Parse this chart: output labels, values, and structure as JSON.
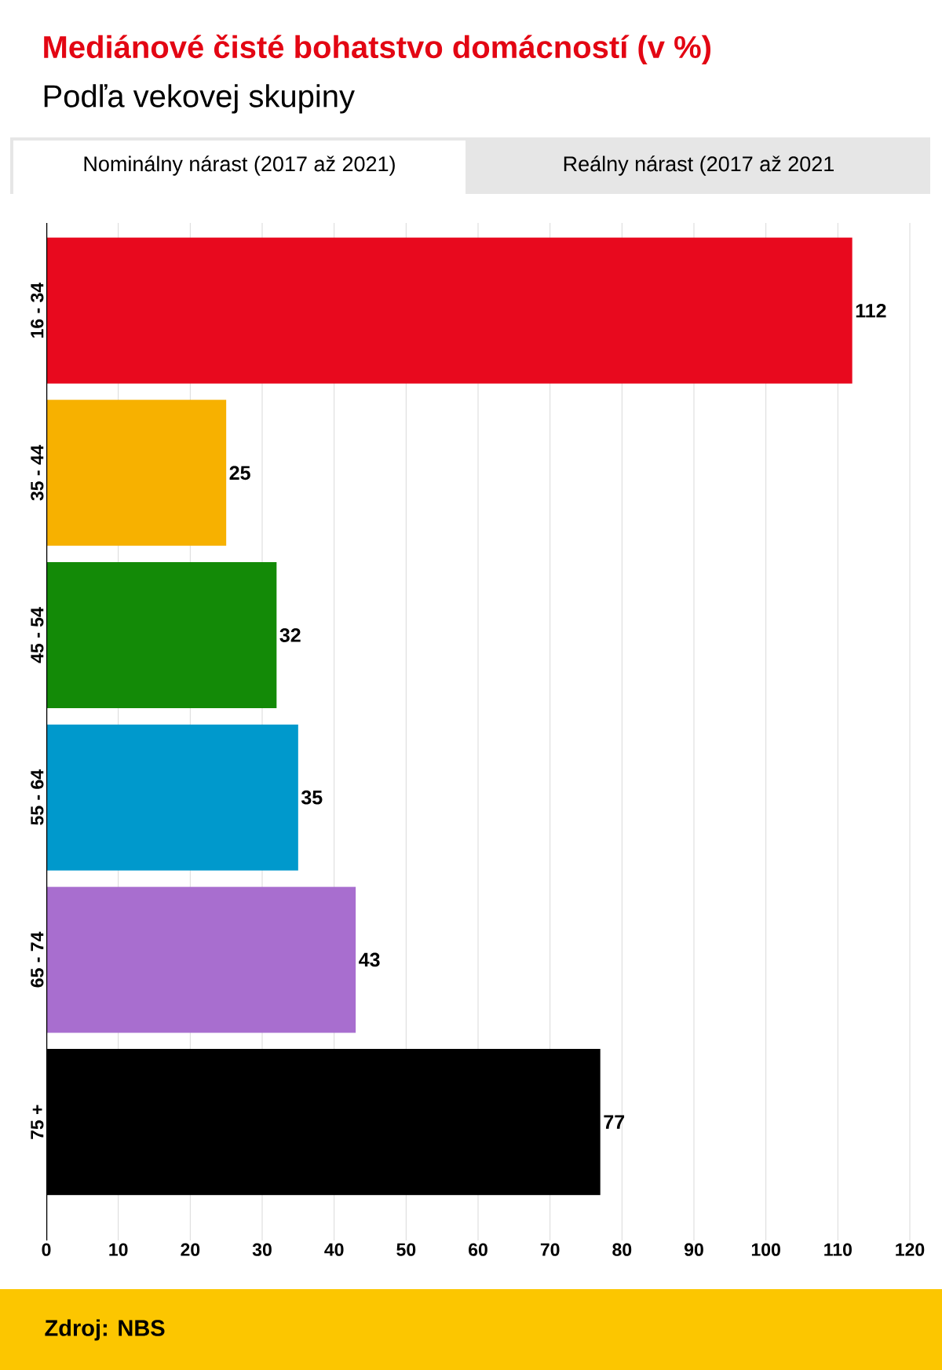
{
  "chart_data": {
    "type": "bar",
    "orientation": "horizontal",
    "title": "Mediánové čisté bohatstvo domácností (v %)",
    "subtitle": "Podľa vekovej skupiny",
    "annotations": [
      "Nominálny nárast (2017 až 2021)",
      "Reálny nárast (2017 až 2021",
      "Zdroj: NBS"
    ],
    "categories": [
      "16 - 34",
      "35 - 44",
      "45 - 54",
      "55 - 64",
      "65 - 74",
      "75 +"
    ],
    "values": [
      112,
      25,
      32,
      35,
      43,
      77
    ],
    "colors": [
      "#e8091e",
      "#f7b100",
      "#138a07",
      "#0099cc",
      "#a86ecf",
      "#000000"
    ],
    "xlim": [
      0,
      120
    ],
    "xticks": [
      0,
      10,
      20,
      30,
      40,
      50,
      60,
      70,
      80,
      90,
      100,
      110,
      120
    ],
    "grid": "x",
    "data_labels": true
  }
}
